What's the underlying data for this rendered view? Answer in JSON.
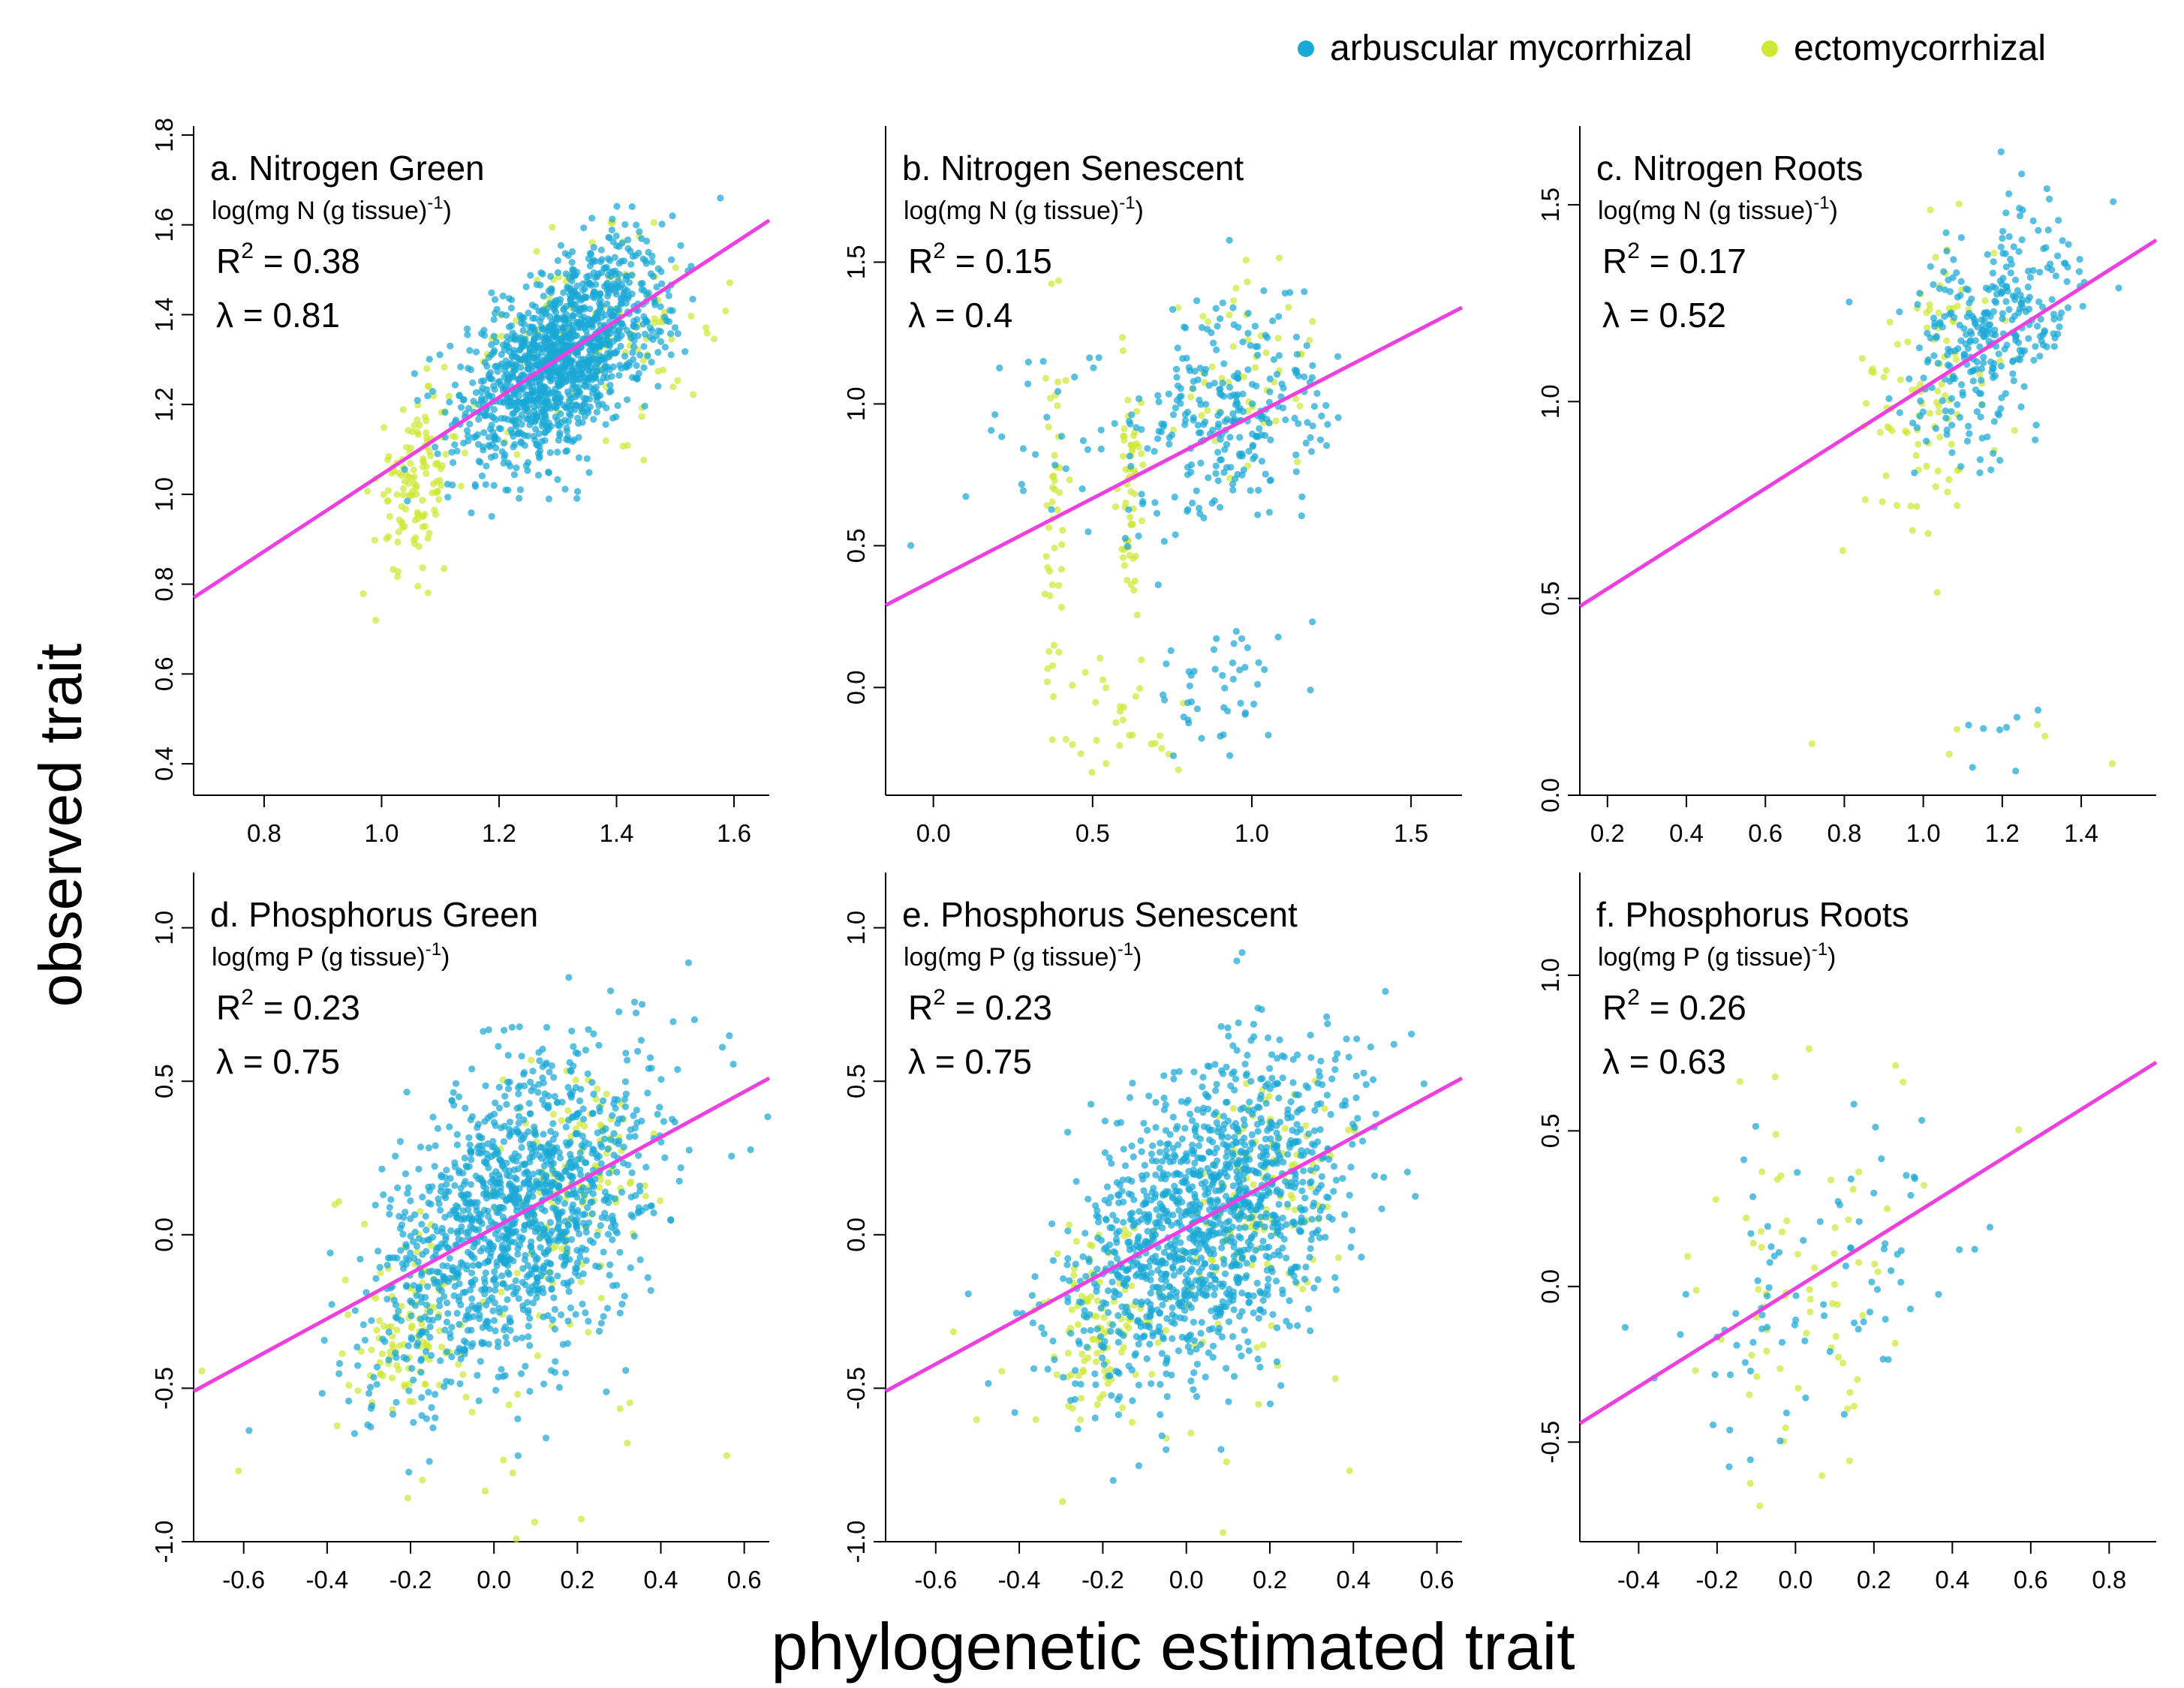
{
  "figure": {
    "xlabel": "phylogenetic estimated trait",
    "ylabel": "observed trait",
    "legend": {
      "position": "top-right",
      "items": [
        {
          "label": "arbuscular mycorrhizal",
          "color": "#1aa8d6"
        },
        {
          "label": "ectomycorrhizal",
          "color": "#cfe836"
        }
      ]
    },
    "fit_line_color": "#ee40e0"
  },
  "chart_data": [
    {
      "type": "scatter",
      "title": "a. Nitrogen Green",
      "units": "log(mg N (g tissue)",
      "units_sup": "-1",
      "units_end": ")",
      "r2": "= 0.38",
      "lambda": "= 0.81",
      "xlim": [
        0.68,
        1.66
      ],
      "ylim": [
        0.33,
        1.82
      ],
      "xticks": [
        0.8,
        1.0,
        1.2,
        1.4,
        1.6
      ],
      "xtick_labels": [
        "0.8",
        "1.0",
        "1.2",
        "1.4",
        "1.6"
      ],
      "yticks": [
        0.4,
        0.6,
        0.8,
        1.0,
        1.2,
        1.4,
        1.6,
        1.8
      ],
      "ytick_labels": [
        "0.4",
        "0.6",
        "0.8",
        "1.0",
        "1.2",
        "1.4",
        "1.6",
        "1.8"
      ],
      "fit_line": {
        "x": [
          0.68,
          1.66
        ],
        "y": [
          0.77,
          1.61
        ]
      },
      "clusters": {
        "arbuscular_mycorrhizal": [
          {
            "n": 1300,
            "cx": 1.31,
            "sx": 0.085,
            "cy": 1.31,
            "sy": 0.12,
            "corr": 0.55
          }
        ],
        "ectomycorrhizal": [
          {
            "n": 130,
            "cx": 1.06,
            "sx": 0.035,
            "cy": 1.03,
            "sy": 0.1,
            "corr": 0.2
          },
          {
            "n": 120,
            "cx": 1.35,
            "sx": 0.11,
            "cy": 1.35,
            "sy": 0.1,
            "corr": 0.3
          }
        ]
      }
    },
    {
      "type": "scatter",
      "title": "b. Nitrogen Senescent",
      "units": "log(mg N (g tissue)",
      "units_sup": "-1",
      "units_end": ")",
      "r2": "= 0.15",
      "lambda": "= 0.4",
      "xlim": [
        -0.15,
        1.66
      ],
      "ylim": [
        -0.38,
        1.98
      ],
      "xticks": [
        0.0,
        0.5,
        1.0,
        1.5
      ],
      "xtick_labels": [
        "0.0",
        "0.5",
        "1.0",
        "1.5"
      ],
      "yticks": [
        0.0,
        0.5,
        1.0,
        1.5
      ],
      "ytick_labels": [
        "0.0",
        "0.5",
        "1.0",
        "1.5"
      ],
      "fit_line": {
        "x": [
          -0.15,
          1.66
        ],
        "y": [
          0.29,
          1.34
        ]
      },
      "clusters": {
        "arbuscular_mycorrhizal": [
          {
            "n": 260,
            "cx": 0.93,
            "sx": 0.14,
            "cy": 0.95,
            "sy": 0.2,
            "corr": 0.2
          },
          {
            "n": 45,
            "cx": 0.9,
            "sx": 0.12,
            "cy": 0.0,
            "sy": 0.12,
            "corr": 0.0
          },
          {
            "n": 40,
            "cx": 0.5,
            "sx": 0.2,
            "cy": 0.9,
            "sy": 0.2,
            "corr": 0.0
          }
        ],
        "ectomycorrhizal": [
          {
            "n": 60,
            "cx": 0.62,
            "sx": 0.02,
            "cy": 0.7,
            "sy": 0.25,
            "corr": 0.0
          },
          {
            "n": 45,
            "cx": 0.38,
            "sx": 0.02,
            "cy": 0.5,
            "sy": 0.35,
            "corr": 0.0
          },
          {
            "n": 50,
            "cx": 1.0,
            "sx": 0.1,
            "cy": 1.1,
            "sy": 0.2,
            "corr": 0.0
          },
          {
            "n": 30,
            "cx": 0.65,
            "sx": 0.12,
            "cy": -0.1,
            "sy": 0.12,
            "corr": 0.0
          }
        ]
      }
    },
    {
      "type": "scatter",
      "title": "c. Nitrogen Roots",
      "units": "log(mg N (g tissue)",
      "units_sup": "-1",
      "units_end": ")",
      "r2": "= 0.17",
      "lambda": "= 0.52",
      "xlim": [
        0.13,
        1.59
      ],
      "ylim": [
        0.0,
        1.7
      ],
      "xticks": [
        0.2,
        0.4,
        0.6,
        0.8,
        1.0,
        1.2,
        1.4
      ],
      "xtick_labels": [
        "0.2",
        "0.4",
        "0.6",
        "0.8",
        "1.0",
        "1.2",
        "1.4"
      ],
      "yticks": [
        0.0,
        0.5,
        1.0,
        1.5
      ],
      "ytick_labels": [
        "0.0",
        "0.5",
        "1.0",
        "1.5"
      ],
      "fit_line": {
        "x": [
          0.13,
          1.59
        ],
        "y": [
          0.48,
          1.41
        ]
      },
      "clusters": {
        "arbuscular_mycorrhizal": [
          {
            "n": 320,
            "cx": 1.17,
            "sx": 0.11,
            "cy": 1.17,
            "sy": 0.16,
            "corr": 0.35
          },
          {
            "n": 8,
            "cx": 1.2,
            "sx": 0.08,
            "cy": 0.18,
            "sy": 0.05,
            "corr": 0.0
          }
        ],
        "ectomycorrhizal": [
          {
            "n": 100,
            "cx": 1.0,
            "sx": 0.08,
            "cy": 1.0,
            "sy": 0.18,
            "corr": 0.2
          },
          {
            "n": 6,
            "cx": 0.95,
            "sx": 0.2,
            "cy": 0.15,
            "sy": 0.05,
            "corr": 0.0
          }
        ]
      }
    },
    {
      "type": "scatter",
      "title": "d. Phosphorus Green",
      "units": "log(mg P (g tissue)",
      "units_sup": "-1",
      "units_end": ")",
      "r2": "= 0.23",
      "lambda": "= 0.75",
      "xlim": [
        -0.72,
        0.66
      ],
      "ylim": [
        -1.0,
        1.18
      ],
      "xticks": [
        -0.6,
        -0.4,
        -0.2,
        0.0,
        0.2,
        0.4,
        0.6
      ],
      "xtick_labels": [
        "-0.6",
        "-0.4",
        "-0.2",
        "0.0",
        "0.2",
        "0.4",
        "0.6"
      ],
      "yticks": [
        -1.0,
        -0.5,
        0.0,
        0.5,
        1.0
      ],
      "ytick_labels": [
        "-1.0",
        "-0.5",
        "0.0",
        "0.5",
        "1.0"
      ],
      "fit_line": {
        "x": [
          -0.72,
          0.66
        ],
        "y": [
          -0.51,
          0.51
        ]
      },
      "clusters": {
        "arbuscular_mycorrhizal": [
          {
            "n": 1300,
            "cx": 0.05,
            "sx": 0.17,
            "cy": 0.05,
            "sy": 0.27,
            "corr": 0.45
          }
        ],
        "ectomycorrhizal": [
          {
            "n": 110,
            "cx": 0.2,
            "sx": 0.09,
            "cy": 0.15,
            "sy": 0.2,
            "corr": 0.3
          },
          {
            "n": 90,
            "cx": -0.2,
            "sx": 0.06,
            "cy": -0.3,
            "sy": 0.15,
            "corr": 0.2
          },
          {
            "n": 40,
            "cx": -0.05,
            "sx": 0.25,
            "cy": -0.4,
            "sy": 0.3,
            "corr": 0.0
          }
        ]
      }
    },
    {
      "type": "scatter",
      "title": "e. Phosphorus Senescent",
      "units": "log(mg P (g tissue)",
      "units_sup": "-1",
      "units_end": ")",
      "r2": "= 0.23",
      "lambda": "= 0.75",
      "xlim": [
        -0.72,
        0.66
      ],
      "ylim": [
        -1.0,
        1.18
      ],
      "xticks": [
        -0.6,
        -0.4,
        -0.2,
        0.0,
        0.2,
        0.4,
        0.6
      ],
      "xtick_labels": [
        "-0.6",
        "-0.4",
        "-0.2",
        "0.0",
        "0.2",
        "0.4",
        "0.6"
      ],
      "yticks": [
        -1.0,
        -0.5,
        0.0,
        0.5,
        1.0
      ],
      "ytick_labels": [
        "-1.0",
        "-0.5",
        "0.0",
        "0.5",
        "1.0"
      ],
      "fit_line": {
        "x": [
          -0.72,
          0.66
        ],
        "y": [
          -0.51,
          0.51
        ]
      },
      "clusters": {
        "arbuscular_mycorrhizal": [
          {
            "n": 1300,
            "cx": 0.05,
            "sx": 0.17,
            "cy": 0.05,
            "sy": 0.27,
            "corr": 0.45
          }
        ],
        "ectomycorrhizal": [
          {
            "n": 110,
            "cx": 0.2,
            "sx": 0.09,
            "cy": 0.15,
            "sy": 0.2,
            "corr": 0.3
          },
          {
            "n": 90,
            "cx": -0.2,
            "sx": 0.06,
            "cy": -0.3,
            "sy": 0.15,
            "corr": 0.2
          },
          {
            "n": 40,
            "cx": -0.05,
            "sx": 0.25,
            "cy": -0.4,
            "sy": 0.3,
            "corr": 0.0
          }
        ]
      }
    },
    {
      "type": "scatter",
      "title": "f. Phosphorus Roots",
      "units": "log(mg P (g tissue)",
      "units_sup": "-1",
      "units_end": ")",
      "r2": "= 0.26",
      "lambda": "= 0.63",
      "xlim": [
        -0.55,
        0.92
      ],
      "ylim": [
        -0.82,
        1.33
      ],
      "xticks": [
        -0.4,
        -0.2,
        0.0,
        0.2,
        0.4,
        0.6,
        0.8
      ],
      "xtick_labels": [
        "-0.4",
        "-0.2",
        "0.0",
        "0.2",
        "0.4",
        "0.6",
        "0.8"
      ],
      "yticks": [
        -0.5,
        0.0,
        0.5,
        1.0
      ],
      "ytick_labels": [
        "-0.5",
        "0.0",
        "0.5",
        "1.0"
      ],
      "fit_line": {
        "x": [
          -0.55,
          0.92
        ],
        "y": [
          -0.44,
          0.72
        ]
      },
      "clusters": {
        "arbuscular_mycorrhizal": [
          {
            "n": 85,
            "cx": 0.05,
            "sx": 0.2,
            "cy": 0.0,
            "sy": 0.3,
            "corr": 0.45
          }
        ],
        "ectomycorrhizal": [
          {
            "n": 70,
            "cx": 0.0,
            "sx": 0.15,
            "cy": 0.0,
            "sy": 0.3,
            "corr": 0.3
          }
        ]
      }
    }
  ]
}
